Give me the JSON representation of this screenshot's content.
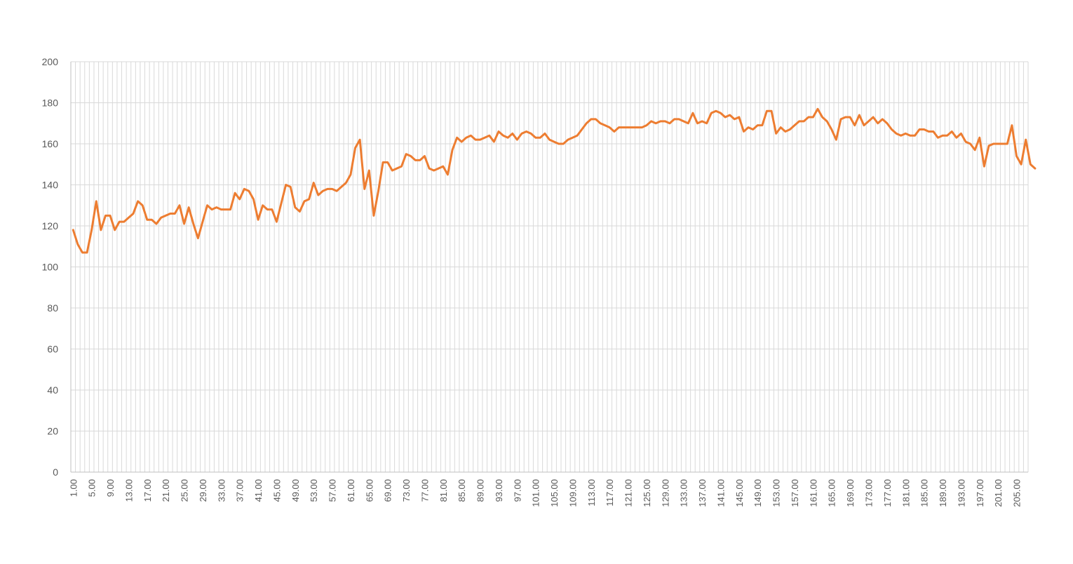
{
  "chart_data": {
    "type": "line",
    "title": "",
    "xlabel": "",
    "ylabel": "",
    "ylim": [
      0,
      200
    ],
    "y_ticks": [
      0,
      20,
      40,
      60,
      80,
      100,
      120,
      140,
      160,
      180,
      200
    ],
    "x_range": [
      1,
      207
    ],
    "x_tick_step": 4,
    "x_tick_format": "2 decimals",
    "grid": {
      "horizontal": true,
      "vertical": true
    },
    "legend": "none",
    "series": [
      {
        "color": "#ED7D31",
        "x_start": 1,
        "x_step": 1,
        "values": [
          118,
          111,
          107,
          107,
          118,
          132,
          118,
          125,
          125,
          118,
          122,
          122,
          124,
          126,
          132,
          130,
          123,
          123,
          121,
          124,
          125,
          126,
          126,
          130,
          121,
          129,
          121,
          114,
          122,
          130,
          128,
          129,
          128,
          128,
          128,
          136,
          133,
          138,
          137,
          133,
          123,
          130,
          128,
          128,
          122,
          131,
          140,
          139,
          129,
          127,
          132,
          133,
          141,
          135,
          137,
          138,
          138,
          137,
          139,
          141,
          145,
          158,
          162,
          138,
          147,
          125,
          137,
          151,
          151,
          147,
          148,
          149,
          155,
          154,
          152,
          152,
          154,
          148,
          147,
          148,
          149,
          145,
          157,
          163,
          161,
          163,
          164,
          162,
          162,
          163,
          164,
          161,
          166,
          164,
          163,
          165,
          162,
          165,
          166,
          165,
          163,
          163,
          165,
          162,
          161,
          160,
          160,
          162,
          163,
          164,
          167,
          170,
          172,
          172,
          170,
          169,
          168,
          166,
          168,
          168,
          168,
          168,
          168,
          168,
          169,
          171,
          170,
          171,
          171,
          170,
          172,
          172,
          171,
          170,
          175,
          170,
          171,
          170,
          175,
          176,
          175,
          173,
          174,
          172,
          173,
          166,
          168,
          167,
          169,
          169,
          176,
          176,
          165,
          168,
          166,
          167,
          169,
          171,
          171,
          173,
          173,
          177,
          173,
          171,
          167,
          162,
          172,
          173,
          173,
          169,
          174,
          169,
          171,
          173,
          170,
          172,
          170,
          167,
          165,
          164,
          165,
          164,
          164,
          167,
          167,
          166,
          166,
          163,
          164,
          164,
          166,
          163,
          165,
          161,
          160,
          157,
          163,
          149,
          159,
          160,
          160,
          160,
          160,
          169,
          154,
          150,
          162,
          150,
          148
        ]
      }
    ]
  }
}
